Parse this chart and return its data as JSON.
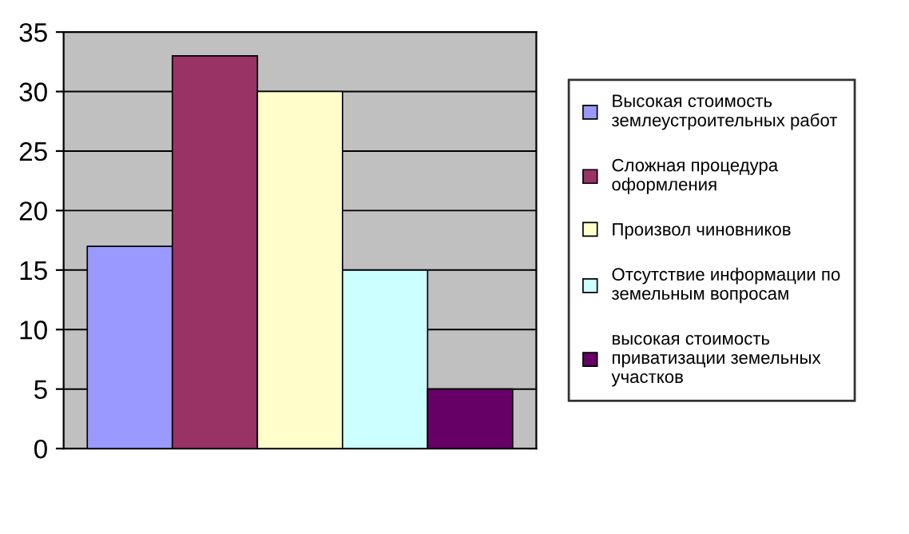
{
  "chart_data": {
    "type": "bar",
    "categories": [
      null
    ],
    "series": [
      {
        "name": "Высокая стоимость\nземлеустроительных работ",
        "color": "#9999ff",
        "values": [
          17
        ]
      },
      {
        "name": "Сложная процедура\nоформления",
        "color": "#993366",
        "values": [
          33
        ]
      },
      {
        "name": "Произвол чиновников",
        "color": "#ffffcc",
        "values": [
          30
        ]
      },
      {
        "name": "Отсутствие информации по\nземельным вопросам",
        "color": "#ccffff",
        "values": [
          15
        ]
      },
      {
        "name": "высокая стоимость\nприватизации земельных\nучастков",
        "color": "#660066",
        "values": [
          5
        ]
      }
    ],
    "ylim": [
      0,
      35
    ],
    "yticks": [
      0,
      5,
      10,
      15,
      20,
      25,
      30,
      35
    ],
    "grid": "y",
    "legend": "right"
  }
}
